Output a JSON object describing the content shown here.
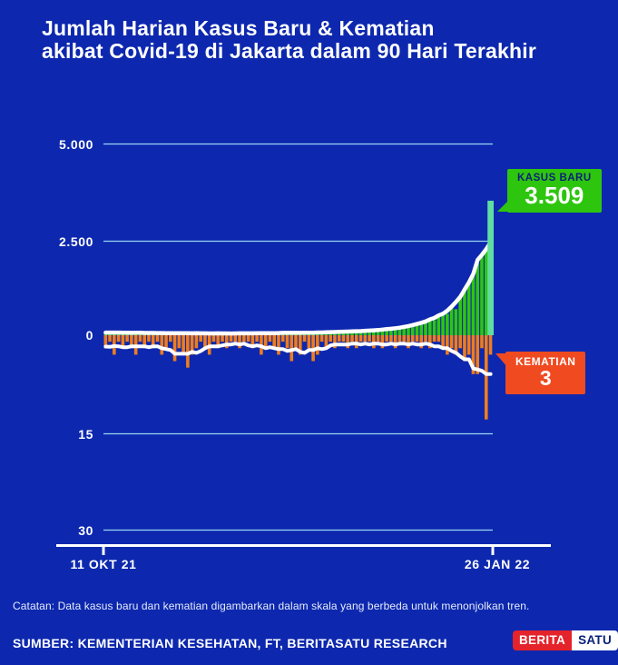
{
  "title": {
    "line1": "Jumlah Harian Kasus Baru &  Kematian",
    "line2": "akibat Covid-19 di Jakarta dalam 90 Hari Terakhir"
  },
  "axis": {
    "y_labels": [
      "5.000",
      "2.500",
      "0",
      "15",
      "30"
    ],
    "x_labels": [
      "11 OKT 21",
      "26 JAN 22"
    ]
  },
  "callouts": {
    "kasus_baru": {
      "label": "KASUS BARU",
      "value": "3.509"
    },
    "kematian": {
      "label": "KEMATIAN",
      "value": "3"
    }
  },
  "footer": {
    "note": "Catatan: Data kasus baru dan kematian digambarkan dalam skala yang berbeda untuk menonjolkan tren.",
    "source": "SUMBER: KEMENTERIAN KESEHATAN, FT, BERITASATU RESEARCH",
    "logo": {
      "part1": "BERITA",
      "part2": "SATU"
    }
  },
  "colors": {
    "background": "#0D28AE",
    "gridline": "#9AD6F3",
    "cases_green": "#2EC50F",
    "cases_highlight_mint": "#60DDA2",
    "deaths_orange": "#EE7D1E",
    "kematian_red": "#F04A21",
    "logo_red": "#E4232B",
    "navy_text": "#0A2178",
    "white": "#FFFFFF"
  },
  "chart_data": {
    "type": "bar",
    "title": "Jumlah Harian Kasus Baru & Kematian akibat Covid-19 di Jakarta dalam 90 Hari Terakhir",
    "x_range": [
      "11 OKT 21",
      "26 JAN 22"
    ],
    "days": 90,
    "cases_axis": {
      "ticks": [
        0,
        2500,
        5000
      ],
      "max": 5000,
      "direction": "up"
    },
    "deaths_axis": {
      "ticks": [
        0,
        15,
        30
      ],
      "max": 30,
      "direction": "down"
    },
    "dual_scale_note": "cases plotted upward, deaths plotted downward on a different scale",
    "trend_window": 7,
    "series": [
      {
        "name": "Kasus Baru",
        "color": "#2EC50F",
        "highlight_last_color": "#60DDA2",
        "last_value": 3509,
        "values": [
          82,
          64,
          71,
          55,
          68,
          75,
          60,
          52,
          66,
          58,
          61,
          70,
          48,
          55,
          63,
          50,
          57,
          45,
          52,
          60,
          47,
          54,
          42,
          49,
          58,
          44,
          51,
          39,
          46,
          55,
          43,
          50,
          38,
          57,
          62,
          48,
          54,
          41,
          59,
          65,
          52,
          60,
          47,
          68,
          74,
          58,
          66,
          51,
          72,
          80,
          63,
          75,
          86,
          70,
          92,
          105,
          85,
          98,
          112,
          96,
          120,
          108,
          135,
          150,
          127,
          168,
          145,
          190,
          215,
          180,
          255,
          230,
          310,
          290,
          370,
          420,
          390,
          515,
          610,
          560,
          750,
          680,
          980,
          1150,
          1360,
          1560,
          1870,
          2050,
          2250,
          3509
        ]
      },
      {
        "name": "Kematian",
        "color": "#EE7D1E",
        "last_value": 3,
        "values": [
          2,
          1,
          3,
          1,
          2,
          1,
          2,
          3,
          1,
          2,
          1,
          2,
          1,
          3,
          2,
          1,
          4,
          2,
          3,
          5,
          3,
          2,
          1,
          2,
          3,
          1,
          2,
          1,
          2,
          1,
          1,
          2,
          1,
          1,
          2,
          1,
          3,
          2,
          1,
          2,
          3,
          1,
          2,
          4,
          2,
          3,
          1,
          2,
          4,
          3,
          1,
          2,
          1,
          2,
          1,
          1,
          2,
          1,
          2,
          1,
          1,
          1,
          2,
          1,
          2,
          1,
          1,
          2,
          1,
          1,
          2,
          1,
          1,
          2,
          1,
          2,
          1,
          1,
          2,
          3,
          2,
          3,
          2,
          4,
          3,
          6,
          6,
          2,
          13,
          3
        ]
      }
    ]
  }
}
